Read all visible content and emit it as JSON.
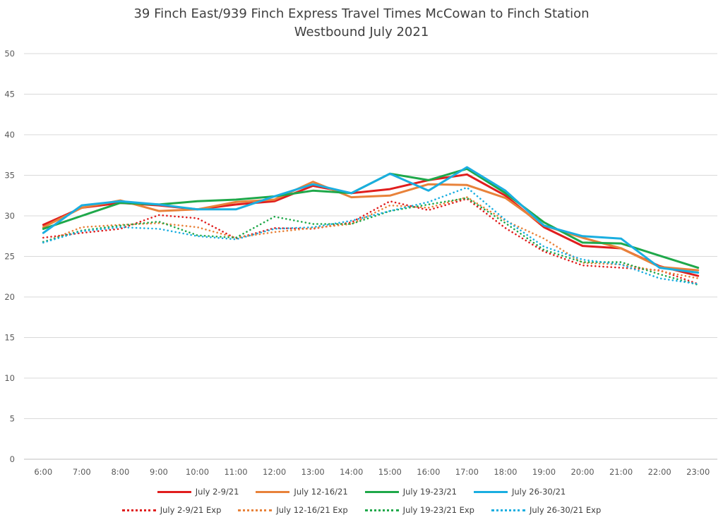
{
  "chart_data": {
    "type": "line",
    "title": "39 Finch East/939 Finch Express Travel Times McCowan to Finch Station",
    "subtitle": "Westbound  July 2021",
    "categories": [
      "6:00",
      "7:00",
      "8:00",
      "9:00",
      "10:00",
      "11:00",
      "12:00",
      "13:00",
      "14:00",
      "15:00",
      "16:00",
      "17:00",
      "18:00",
      "19:00",
      "20:00",
      "21:00",
      "22:00",
      "23:00"
    ],
    "ylim": [
      0,
      50
    ],
    "yticks": [
      0,
      5,
      10,
      15,
      20,
      25,
      30,
      35,
      40,
      45,
      50
    ],
    "grid": true,
    "legend_position": "bottom",
    "series": [
      {
        "name": "July 2-9/21",
        "color": "#e01e1e",
        "style": "solid",
        "values": [
          28.9,
          31.0,
          31.6,
          31.3,
          30.8,
          31.4,
          31.8,
          33.7,
          32.8,
          33.3,
          34.4,
          35.1,
          32.5,
          28.6,
          26.3,
          26.0,
          23.8,
          22.6
        ]
      },
      {
        "name": "July 12-16/21",
        "color": "#e8823a",
        "style": "solid",
        "values": [
          28.6,
          31.0,
          31.9,
          30.6,
          30.8,
          31.7,
          32.0,
          34.2,
          32.3,
          32.5,
          33.9,
          33.8,
          32.2,
          28.8,
          27.3,
          26.0,
          23.7,
          23.3
        ]
      },
      {
        "name": "July 19-23/21",
        "color": "#1fa84a",
        "style": "solid",
        "values": [
          28.4,
          30.0,
          31.6,
          31.4,
          31.8,
          32.0,
          32.4,
          33.1,
          32.8,
          35.2,
          34.4,
          35.8,
          32.8,
          29.2,
          26.7,
          26.6,
          25.1,
          23.6
        ]
      },
      {
        "name": "July 26-30/21",
        "color": "#1aaee0",
        "style": "solid",
        "values": [
          27.9,
          31.3,
          31.8,
          31.4,
          30.8,
          30.8,
          32.4,
          33.9,
          32.8,
          35.2,
          33.1,
          36.0,
          33.1,
          28.8,
          27.5,
          27.2,
          23.6,
          23.0
        ]
      },
      {
        "name": "July 2-9/21 Exp",
        "color": "#e01e1e",
        "style": "dotted",
        "values": [
          27.3,
          27.9,
          28.4,
          30.1,
          29.7,
          27.2,
          28.5,
          28.4,
          29.2,
          31.8,
          30.7,
          32.1,
          28.5,
          25.6,
          23.9,
          23.6,
          23.3,
          21.6
        ]
      },
      {
        "name": "July 12-16/21 Exp",
        "color": "#e8823a",
        "style": "dotted",
        "values": [
          26.7,
          28.6,
          28.9,
          29.1,
          28.6,
          27.3,
          28.0,
          28.5,
          29.0,
          31.3,
          31.0,
          32.3,
          29.4,
          27.2,
          24.2,
          24.0,
          23.2,
          22.3
        ]
      },
      {
        "name": "July 19-23/21 Exp",
        "color": "#1fa84a",
        "style": "dotted",
        "values": [
          26.8,
          28.2,
          28.8,
          29.3,
          27.6,
          27.3,
          29.9,
          29.0,
          29.0,
          30.6,
          31.4,
          32.2,
          29.1,
          25.8,
          24.3,
          24.3,
          22.8,
          21.5
        ]
      },
      {
        "name": "July 26-30/21 Exp",
        "color": "#1aaee0",
        "style": "dotted",
        "values": [
          26.7,
          28.1,
          28.6,
          28.4,
          27.5,
          27.1,
          28.4,
          28.6,
          29.4,
          30.6,
          31.7,
          33.5,
          29.5,
          26.2,
          24.6,
          24.0,
          22.3,
          21.6
        ]
      }
    ]
  }
}
